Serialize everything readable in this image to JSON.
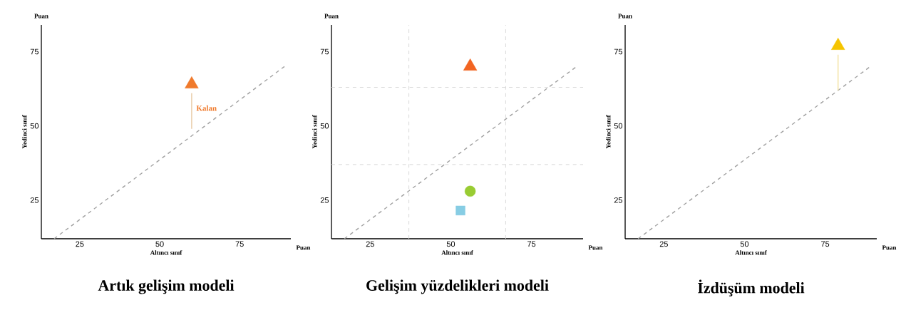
{
  "chart_data": [
    {
      "type": "scatter",
      "title": "Artık gelişim modeli",
      "xlabel": "Altıncı sınıf",
      "ylabel": "Yedinci sınıf",
      "xlim": [
        13,
        91
      ],
      "ylim": [
        12,
        84
      ],
      "xticks": [
        25,
        50,
        75
      ],
      "yticks": [
        25,
        50,
        75
      ],
      "annotations": [
        "Puan",
        "Puan",
        {
          "text": "Kalan",
          "x": 60,
          "y": 56
        }
      ],
      "series": [
        {
          "type": "line",
          "x": [
            17,
            89
          ],
          "values": [
            12,
            70
          ],
          "color": "#a0a0a0",
          "line_style": "dashed",
          "marker": "none"
        },
        {
          "type": "line",
          "x": [
            60,
            60
          ],
          "values": [
            49,
            61
          ],
          "color": "#e8caa4",
          "line_style": "solid",
          "marker": "none"
        },
        {
          "x": [
            60
          ],
          "values": [
            64
          ],
          "color": "#f07a2c",
          "marker": "triangle"
        }
      ]
    },
    {
      "type": "scatter",
      "title": "Gelişim yüzdelikleri modeli",
      "xlabel": "Altıncı sınıf",
      "ylabel": "Yedinci sınıf",
      "xlim": [
        13,
        91
      ],
      "ylim": [
        12,
        84
      ],
      "xticks": [
        25,
        50,
        75
      ],
      "yticks": [
        25,
        50,
        75
      ],
      "annotations": [
        "Puan",
        "Puan"
      ],
      "ref_lines": [
        {
          "axis": "x",
          "value": 37,
          "color": "#d8d8d8",
          "line_style": "dashed"
        },
        {
          "axis": "x",
          "value": 67,
          "color": "#d8d8d8",
          "line_style": "dashed"
        },
        {
          "axis": "y",
          "value": 37,
          "color": "#d8d8d8",
          "line_style": "dashed"
        },
        {
          "axis": "y",
          "value": 63,
          "color": "#d8d8d8",
          "line_style": "dashed"
        }
      ],
      "series": [
        {
          "type": "line",
          "x": [
            17,
            89
          ],
          "values": [
            12,
            70
          ],
          "color": "#a0a0a0",
          "line_style": "dashed",
          "marker": "none"
        },
        {
          "x": [
            56
          ],
          "values": [
            70
          ],
          "color": "#f26522",
          "marker": "triangle"
        },
        {
          "x": [
            56
          ],
          "values": [
            28
          ],
          "color": "#99cc33",
          "marker": "circle"
        },
        {
          "x": [
            53
          ],
          "values": [
            21.5
          ],
          "color": "#87cde4",
          "marker": "square"
        }
      ]
    },
    {
      "type": "scatter",
      "title": "İzdüşüm modeli",
      "xlabel": "Altıncı sınıf",
      "ylabel": "Yedinci sınıf",
      "xlim": [
        13,
        91
      ],
      "ylim": [
        12,
        84
      ],
      "xticks": [
        25,
        50,
        75
      ],
      "yticks": [
        25,
        50,
        75
      ],
      "annotations": [
        "Puan",
        "Puan"
      ],
      "series": [
        {
          "type": "line",
          "x": [
            17,
            89
          ],
          "values": [
            12,
            70
          ],
          "color": "#a0a0a0",
          "line_style": "dashed",
          "marker": "none"
        },
        {
          "type": "line",
          "x": [
            79,
            79
          ],
          "values": [
            62,
            74
          ],
          "color": "#f2e2a0",
          "line_style": "solid",
          "marker": "none"
        },
        {
          "x": [
            79
          ],
          "values": [
            77
          ],
          "color": "#f5c400",
          "marker": "triangle"
        }
      ]
    }
  ]
}
